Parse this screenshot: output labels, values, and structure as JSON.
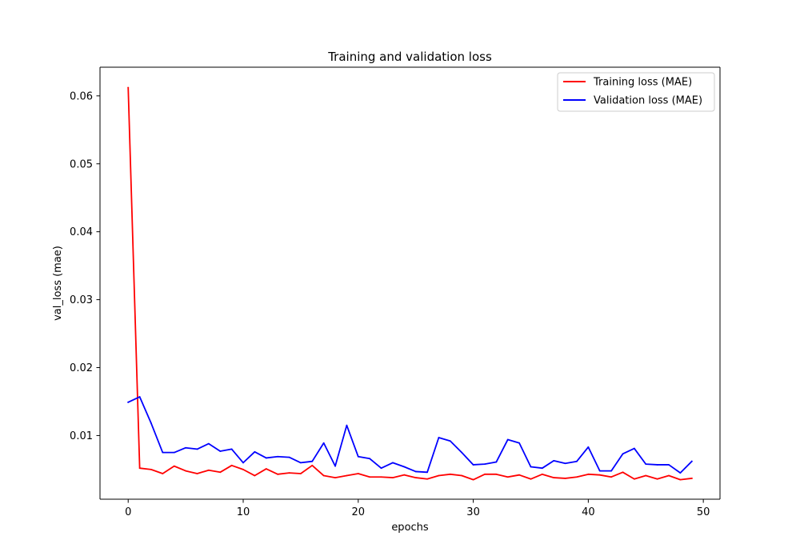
{
  "chart_data": {
    "type": "line",
    "title": "Training and validation loss",
    "xlabel": "epochs",
    "ylabel": "val_loss (mae)",
    "xlim": [
      -2.45,
      51.45
    ],
    "ylim": [
      0.00063,
      0.06422
    ],
    "x_ticks": [
      0,
      10,
      20,
      30,
      40,
      50
    ],
    "x_tick_labels": [
      "0",
      "10",
      "20",
      "30",
      "40",
      "50"
    ],
    "y_ticks": [
      0.01,
      0.02,
      0.03,
      0.04,
      0.05,
      0.06
    ],
    "y_tick_labels": [
      "0.01",
      "0.02",
      "0.03",
      "0.04",
      "0.05",
      "0.06"
    ],
    "grid": false,
    "legend_position": "top-right",
    "x": [
      0,
      1,
      2,
      3,
      4,
      5,
      6,
      7,
      8,
      9,
      10,
      11,
      12,
      13,
      14,
      15,
      16,
      17,
      18,
      19,
      20,
      21,
      22,
      23,
      24,
      25,
      26,
      27,
      28,
      29,
      30,
      31,
      32,
      33,
      34,
      35,
      36,
      37,
      38,
      39,
      40,
      41,
      42,
      43,
      44,
      45,
      46,
      47,
      48,
      49
    ],
    "series": [
      {
        "name": "Training loss (MAE)",
        "color": "#ff0000",
        "values": [
          0.0612,
          0.0052,
          0.005,
          0.0044,
          0.0055,
          0.0048,
          0.0044,
          0.0049,
          0.0046,
          0.0056,
          0.005,
          0.0041,
          0.0051,
          0.0043,
          0.0045,
          0.0044,
          0.0056,
          0.0041,
          0.0038,
          0.0041,
          0.0044,
          0.0039,
          0.0039,
          0.0038,
          0.0042,
          0.0038,
          0.0036,
          0.0041,
          0.0043,
          0.0041,
          0.0035,
          0.0043,
          0.0043,
          0.0039,
          0.0042,
          0.0036,
          0.0043,
          0.0038,
          0.0037,
          0.0039,
          0.0043,
          0.0042,
          0.0039,
          0.0046,
          0.0036,
          0.0041,
          0.0036,
          0.0041,
          0.0035,
          0.0037
        ]
      },
      {
        "name": "Validation loss (MAE)",
        "color": "#0000ff",
        "values": [
          0.0149,
          0.0157,
          0.0118,
          0.0075,
          0.0075,
          0.0082,
          0.008,
          0.0088,
          0.0077,
          0.008,
          0.006,
          0.0076,
          0.0067,
          0.0069,
          0.0068,
          0.006,
          0.0062,
          0.0089,
          0.0055,
          0.0115,
          0.0069,
          0.0066,
          0.0052,
          0.006,
          0.0054,
          0.0047,
          0.0046,
          0.0097,
          0.0092,
          0.0075,
          0.0057,
          0.0058,
          0.0061,
          0.0094,
          0.0089,
          0.0054,
          0.0052,
          0.0063,
          0.0059,
          0.0062,
          0.0083,
          0.0048,
          0.0048,
          0.0073,
          0.0081,
          0.0058,
          0.0057,
          0.0057,
          0.0045,
          0.0062
        ]
      }
    ]
  }
}
